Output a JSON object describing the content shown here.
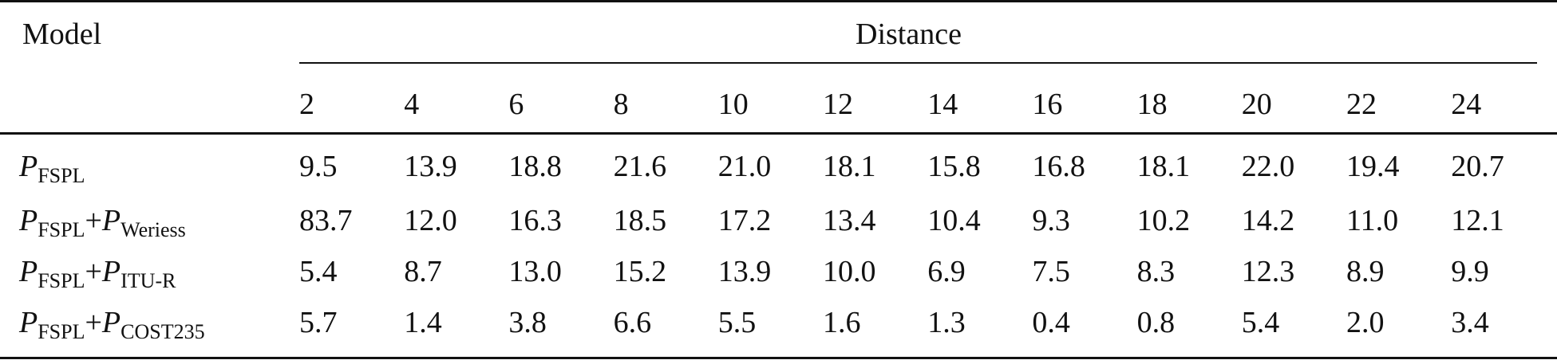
{
  "table": {
    "header": {
      "model": "Model",
      "group": "Distance",
      "distances": [
        2,
        4,
        6,
        8,
        10,
        12,
        14,
        16,
        18,
        20,
        22,
        24
      ]
    },
    "rows": [
      {
        "model": {
          "terms": [
            {
              "symbol": "P",
              "subscript": "FSPL"
            }
          ],
          "operator": "+"
        },
        "values": [
          "9.5",
          "13.9",
          "18.8",
          "21.6",
          "21.0",
          "18.1",
          "15.8",
          "16.8",
          "18.1",
          "22.0",
          "19.4",
          "20.7"
        ]
      },
      {
        "model": {
          "terms": [
            {
              "symbol": "P",
              "subscript": "FSPL"
            },
            {
              "symbol": "P",
              "subscript": "Weriess"
            }
          ],
          "operator": "+"
        },
        "values": [
          "83.7",
          "12.0",
          "16.3",
          "18.5",
          "17.2",
          "13.4",
          "10.4",
          "9.3",
          "10.2",
          "14.2",
          "11.0",
          "12.1"
        ]
      },
      {
        "model": {
          "terms": [
            {
              "symbol": "P",
              "subscript": "FSPL"
            },
            {
              "symbol": "P",
              "subscript": "ITU-R"
            }
          ],
          "operator": "+"
        },
        "values": [
          "5.4",
          "8.7",
          "13.0",
          "15.2",
          "13.9",
          "10.0",
          "6.9",
          "7.5",
          "8.3",
          "12.3",
          "8.9",
          "9.9"
        ]
      },
      {
        "model": {
          "terms": [
            {
              "symbol": "P",
              "subscript": "FSPL"
            },
            {
              "symbol": "P",
              "subscript": "COST235"
            }
          ],
          "operator": "+"
        },
        "values": [
          "5.7",
          "1.4",
          "3.8",
          "6.6",
          "5.5",
          "1.6",
          "1.3",
          "0.4",
          "0.8",
          "5.4",
          "2.0",
          "3.4"
        ]
      }
    ]
  }
}
